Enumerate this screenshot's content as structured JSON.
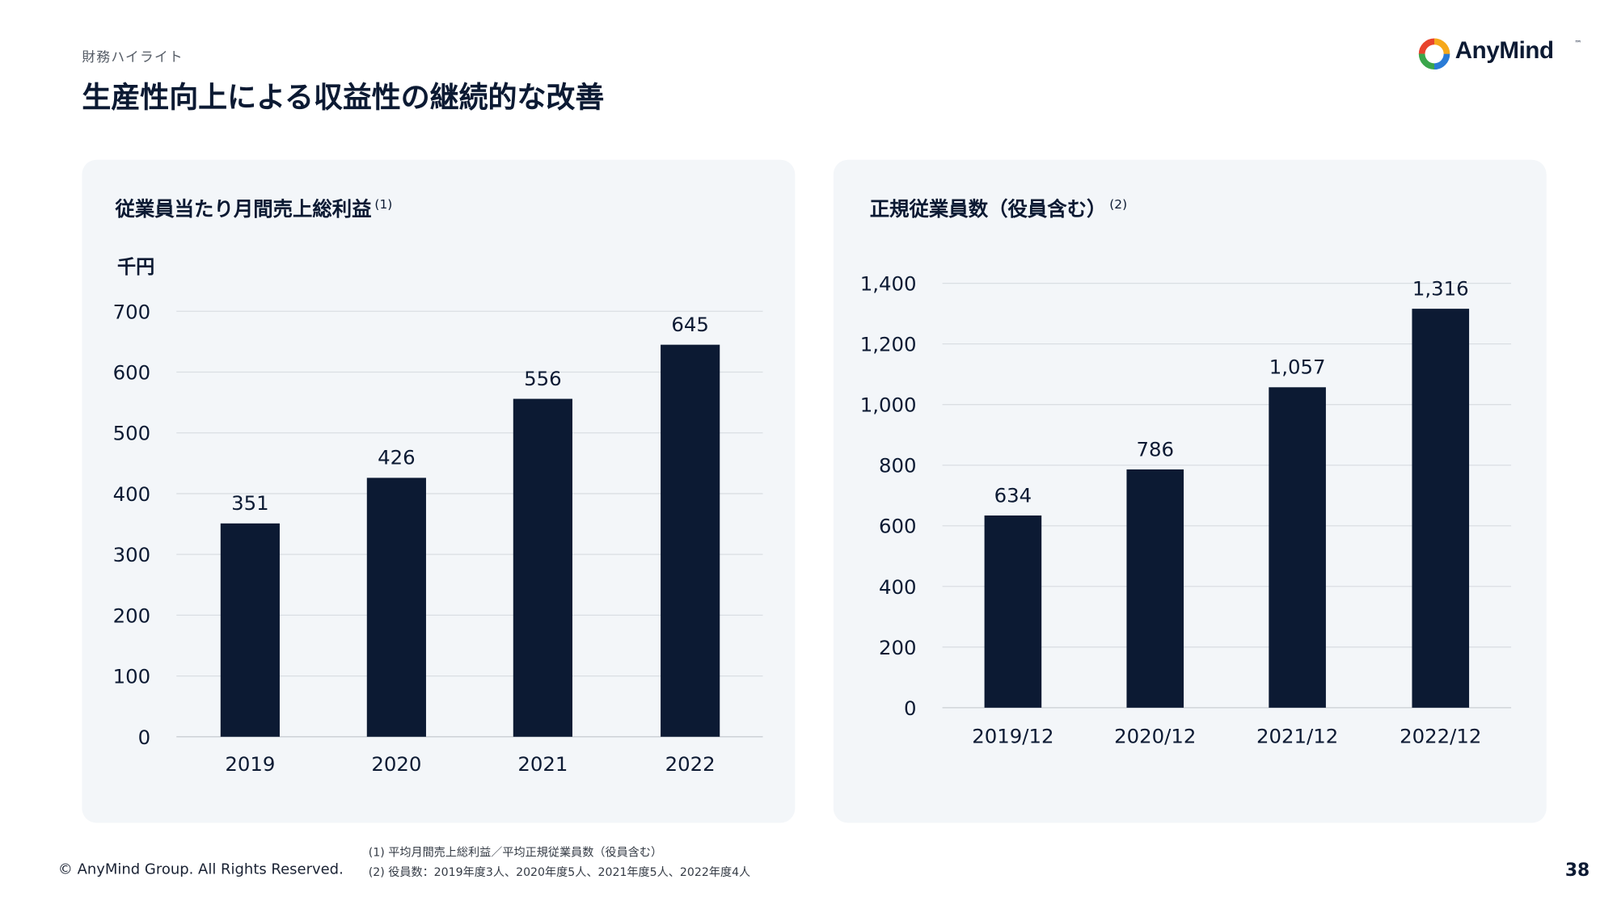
{
  "header": {
    "section": "財務ハイライト",
    "title": "生産性向上による収益性の継続的な改善"
  },
  "logo": {
    "text": "AnyMind",
    "trademark": "™",
    "colors": [
      "#e8442d",
      "#f6a81a",
      "#3aa64b",
      "#2a7bd6"
    ]
  },
  "chart_data": [
    {
      "type": "bar",
      "title": "従業員当たり月間売上総利益",
      "title_note": "(1)",
      "unit": "千円",
      "categories": [
        "2019",
        "2020",
        "2021",
        "2022"
      ],
      "values": [
        351,
        426,
        556,
        645
      ],
      "ylim": [
        0,
        700
      ],
      "yticks": [
        "0",
        "100",
        "200",
        "300",
        "400",
        "500",
        "600",
        "700"
      ],
      "data_labels": [
        "351",
        "426",
        "556",
        "645"
      ],
      "grid": true,
      "bar_color": "#0c1a33"
    },
    {
      "type": "bar",
      "title": "正規従業員数（役員含む）",
      "title_note": "(2)",
      "categories": [
        "2019/12",
        "2020/12",
        "2021/12",
        "2022/12"
      ],
      "values": [
        634,
        786,
        1057,
        1316
      ],
      "ylim": [
        0,
        1400
      ],
      "yticks": [
        "0",
        "200",
        "400",
        "600",
        "800",
        "1,000",
        "1,200",
        "1,400"
      ],
      "data_labels": [
        "634",
        "786",
        "1,057",
        "1,316"
      ],
      "grid": true,
      "bar_color": "#0c1a33"
    }
  ],
  "footer": {
    "copyright": "© AnyMind Group. All Rights Reserved.",
    "note1": "(1) 平均月間売上総利益／平均正規従業員数（役員含む）",
    "note2": "(2) 役員数：2019年度3人、2020年度5人、2021年度5人、2022年度4人",
    "page_number": "38"
  }
}
